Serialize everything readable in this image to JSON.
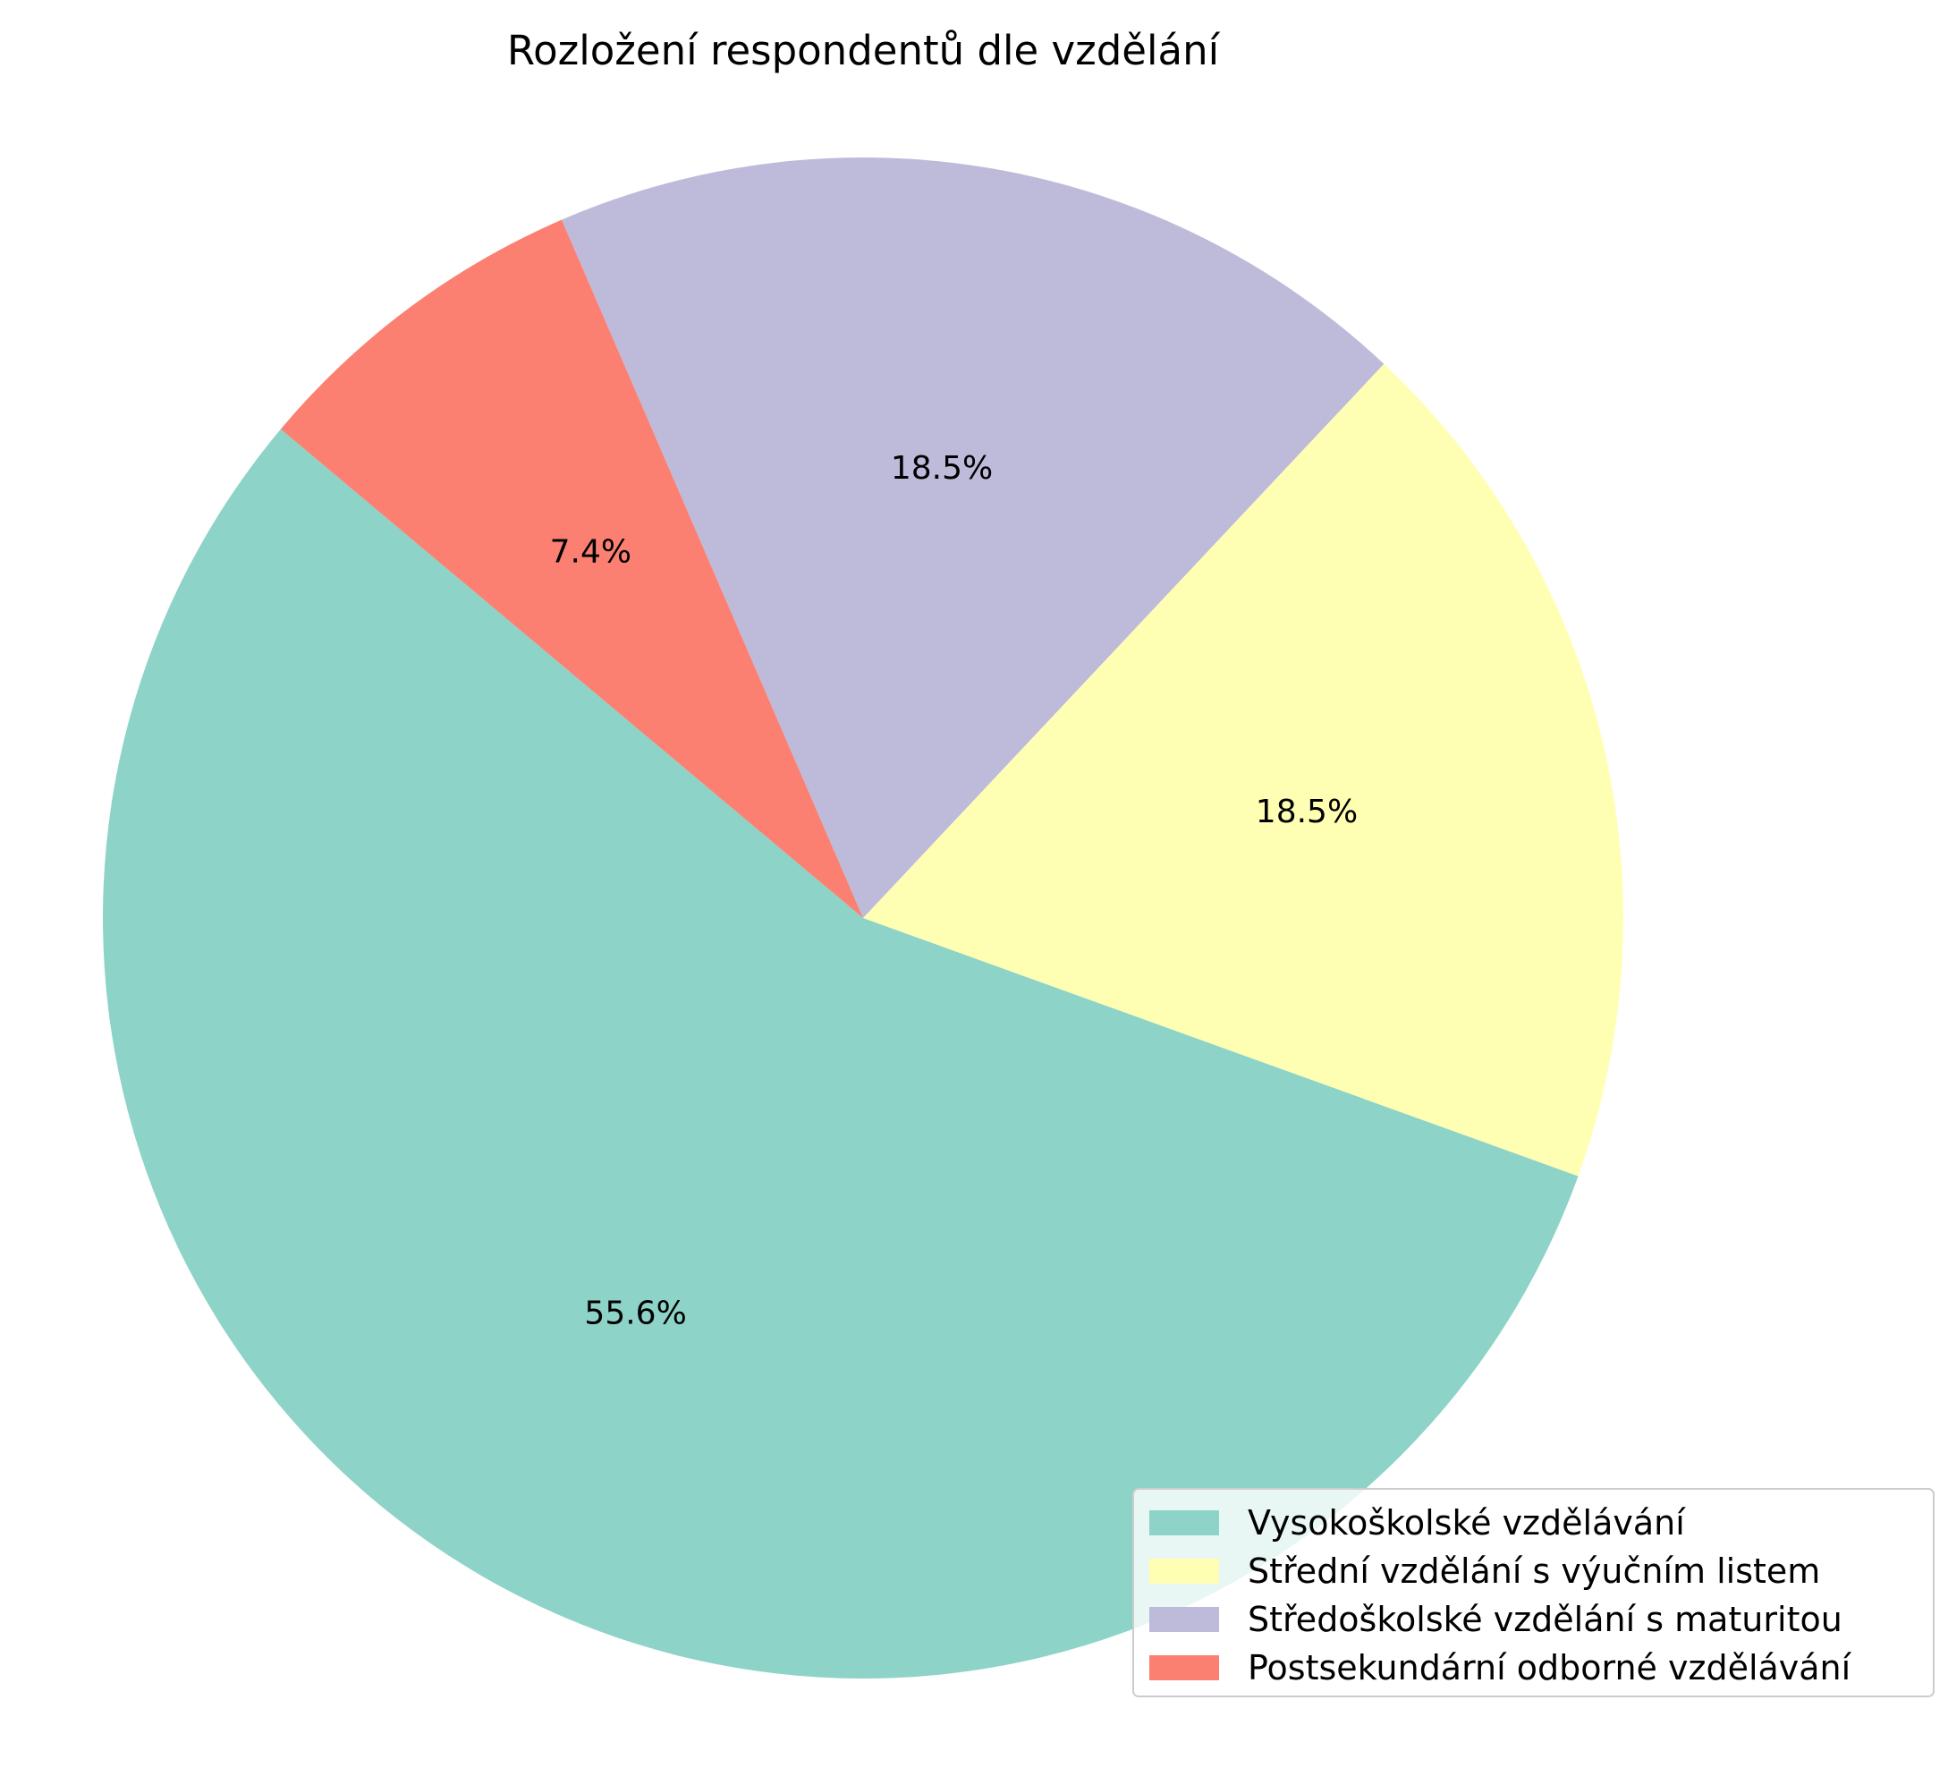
{
  "chart_data": {
    "type": "pie",
    "title": "Rozložení respondentů dle vzdělání",
    "start_angle_deg": 140,
    "direction": "counterclockwise",
    "legend_placement": "lower-right",
    "slices": [
      {
        "label": "Vysokoškolské vzdělávání",
        "value": 55.6,
        "pct_label": "55.6%",
        "color": "#8dd3c7"
      },
      {
        "label": "Střední vzdělání s výučním listem",
        "value": 18.5,
        "pct_label": "18.5%",
        "color": "#ffffb3"
      },
      {
        "label": "Středoškolské vzdělání s maturitou",
        "value": 18.5,
        "pct_label": "18.5%",
        "color": "#bebada"
      },
      {
        "label": "Postsekundární odborné vzdělávání",
        "value": 7.4,
        "pct_label": "7.4%",
        "color": "#fb8072"
      }
    ]
  }
}
